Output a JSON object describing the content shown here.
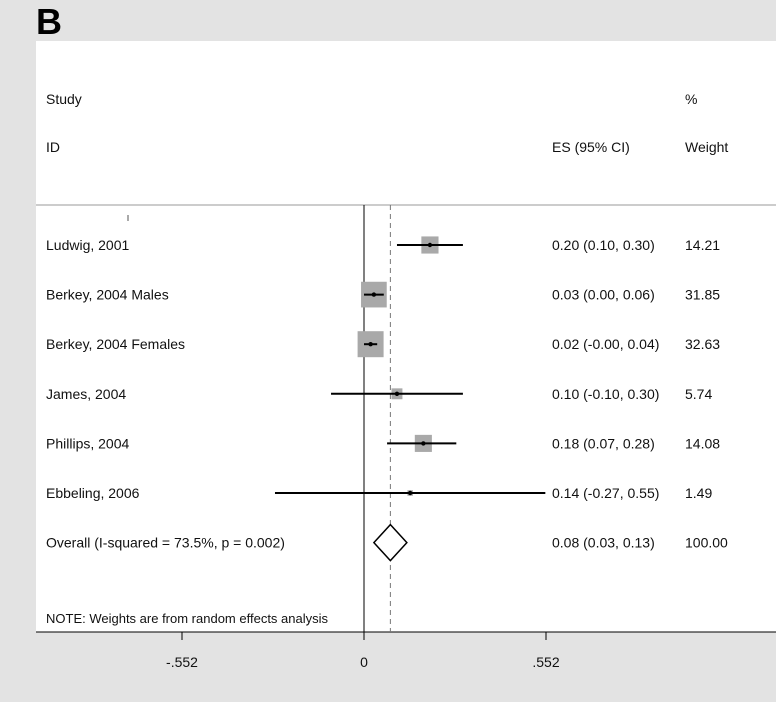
{
  "panel_label": "B",
  "header": {
    "study_line1": "Study",
    "study_line2": "ID",
    "es_label": "ES (95% CI)",
    "weight_line1": "%",
    "weight_line2": "Weight"
  },
  "note": "NOTE: Weights are from random effects analysis",
  "colors": {
    "square": "#a9a9a9",
    "line": "#000000",
    "reference_line": "#777777"
  },
  "chart_data": {
    "type": "forest",
    "studies": [
      {
        "label": "Ludwig, 2001",
        "es": 0.2,
        "lo": 0.1,
        "hi": 0.3,
        "es_text": "0.20 (0.10, 0.30)",
        "weight": 14.21,
        "weight_text": "14.21"
      },
      {
        "label": "Berkey, 2004 Males",
        "es": 0.03,
        "lo": 0.0,
        "hi": 0.06,
        "es_text": "0.03 (0.00, 0.06)",
        "weight": 31.85,
        "weight_text": "31.85"
      },
      {
        "label": "Berkey, 2004 Females",
        "es": 0.02,
        "lo": -0.0,
        "hi": 0.04,
        "es_text": "0.02 (-0.00, 0.04)",
        "weight": 32.63,
        "weight_text": "32.63"
      },
      {
        "label": "James, 2004",
        "es": 0.1,
        "lo": -0.1,
        "hi": 0.3,
        "es_text": "0.10 (-0.10, 0.30)",
        "weight": 5.74,
        "weight_text": "5.74"
      },
      {
        "label": "Phillips, 2004",
        "es": 0.18,
        "lo": 0.07,
        "hi": 0.28,
        "es_text": "0.18 (0.07, 0.28)",
        "weight": 14.08,
        "weight_text": "14.08"
      },
      {
        "label": "Ebbeling, 2006",
        "es": 0.14,
        "lo": -0.27,
        "hi": 0.55,
        "es_text": "0.14 (-0.27, 0.55)",
        "weight": 1.49,
        "weight_text": "1.49"
      }
    ],
    "overall": {
      "label": "Overall  (I-squared = 73.5%, p = 0.002)",
      "es": 0.08,
      "lo": 0.03,
      "hi": 0.13,
      "es_text": "0.08 (0.03, 0.13)",
      "weight_text": "100.00"
    },
    "x_ticks": [
      {
        "value": -0.552,
        "label": "-.552"
      },
      {
        "value": 0,
        "label": "0"
      },
      {
        "value": 0.552,
        "label": ".552"
      }
    ],
    "null_line": 0,
    "pooled_line": 0.08
  }
}
